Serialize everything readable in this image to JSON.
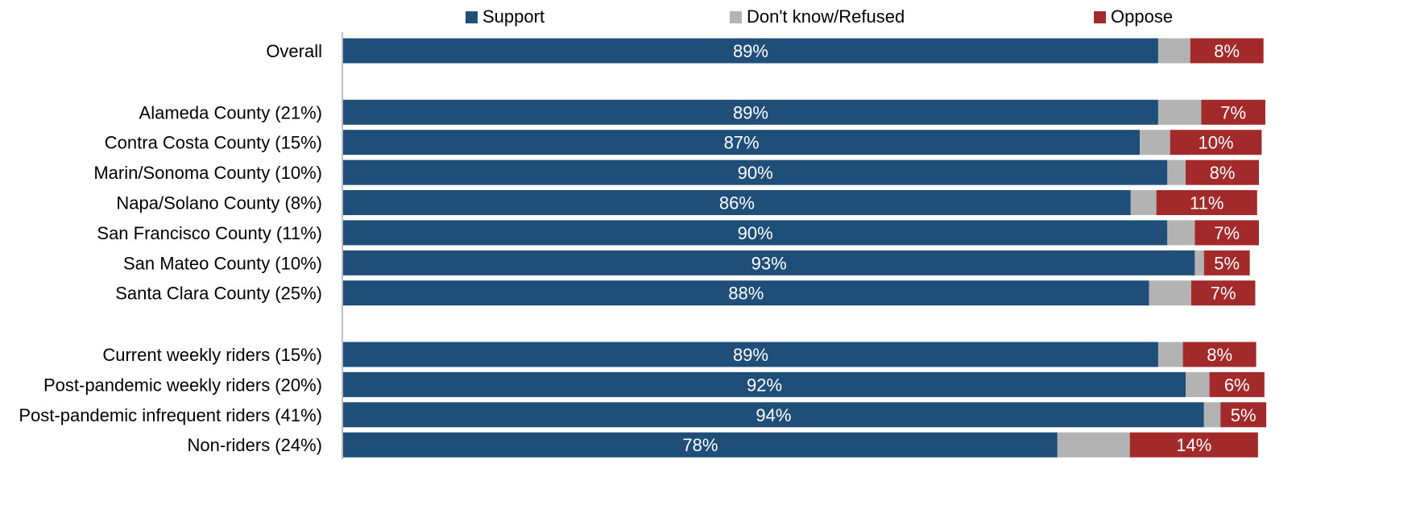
{
  "chart_data": {
    "type": "bar",
    "orientation": "horizontal",
    "stacked": true,
    "grid": false,
    "legend_position": "top",
    "xlim": [
      0,
      100
    ],
    "unit": "%",
    "categories": [
      "Overall",
      "Alameda County (21%)",
      "Contra Costa County (15%)",
      "Marin/Sonoma County (10%)",
      "Napa/Solano County (8%)",
      "San Francisco County (11%)",
      "San Mateo County (10%)",
      "Santa Clara County (25%)",
      "Current weekly riders (15%)",
      "Post-pandemic weekly riders (20%)",
      "Post-pandemic infrequent riders (41%)",
      "Non-riders (24%)"
    ],
    "groups": [
      [
        0
      ],
      [
        1,
        2,
        3,
        4,
        5,
        6,
        7
      ],
      [
        8,
        9,
        10,
        11
      ]
    ],
    "series": [
      {
        "name": "Support",
        "color": "#1F4E79",
        "values": [
          89,
          89,
          87,
          90,
          86,
          90,
          93,
          88,
          89,
          92,
          94,
          78
        ],
        "labels": [
          "89%",
          "89%",
          "87%",
          "90%",
          "86%",
          "90%",
          "93%",
          "88%",
          "89%",
          "92%",
          "94%",
          "78%"
        ]
      },
      {
        "name": "Don't know/Refused",
        "color": "#B3B3B3",
        "values": [
          3.5,
          4.7,
          3.3,
          2.0,
          2.8,
          3.0,
          1.0,
          4.6,
          2.7,
          2.6,
          1.8,
          7.9
        ]
      },
      {
        "name": "Oppose",
        "color": "#A32A2A",
        "values": [
          8,
          7,
          10,
          8,
          11,
          7,
          5,
          7,
          8,
          6,
          5,
          14
        ],
        "labels": [
          "8%",
          "7%",
          "10%",
          "8%",
          "11%",
          "7%",
          "5%",
          "7%",
          "8%",
          "6%",
          "5%",
          "14%"
        ]
      }
    ]
  }
}
